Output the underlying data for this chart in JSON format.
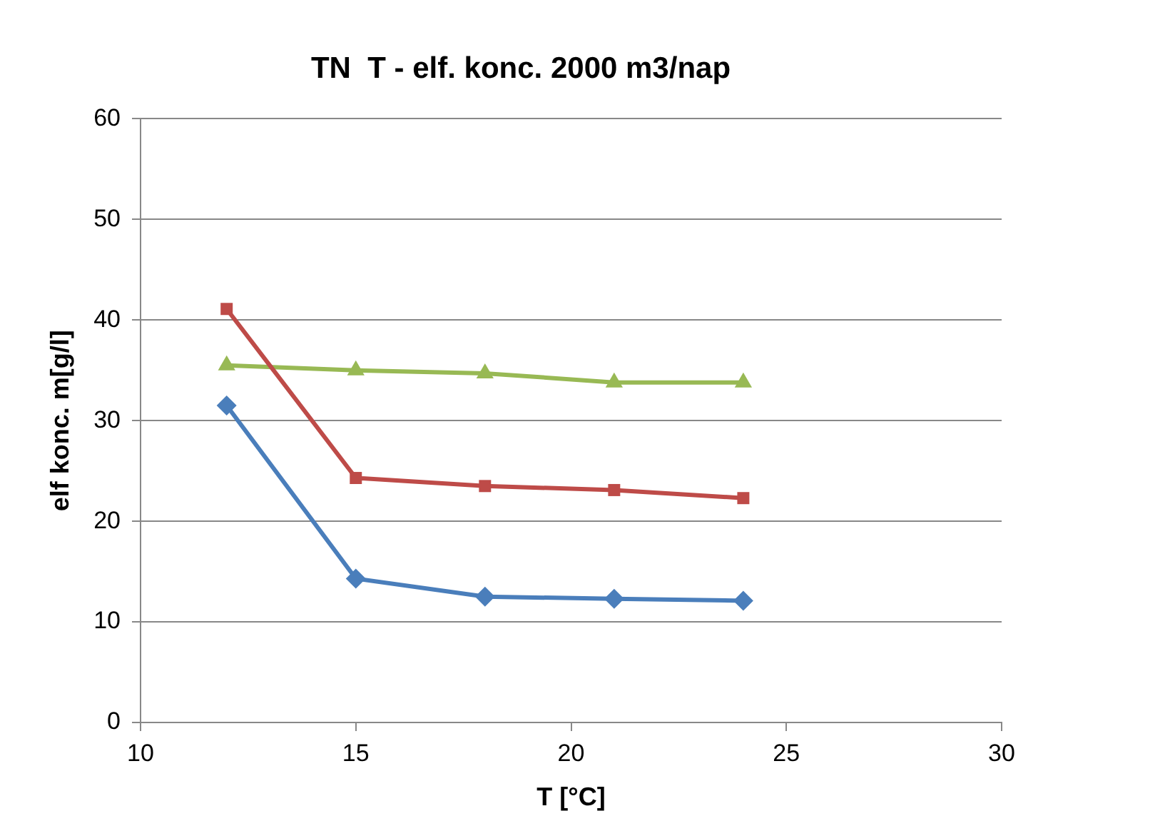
{
  "chart_data": {
    "type": "line",
    "title": "TN  T - elf. konc. 2000 m3/nap",
    "xlabel": "T [°C]",
    "ylabel": "elf konc. m[g/l]",
    "x": [
      12,
      15,
      18,
      21,
      24
    ],
    "series": [
      {
        "color": "#4a7ebb",
        "marker": "diamond",
        "values": [
          31.5,
          14.3,
          12.5,
          12.3,
          12.1
        ]
      },
      {
        "color": "#be4b48",
        "marker": "square",
        "values": [
          41.1,
          24.3,
          23.5,
          23.1,
          22.3
        ]
      },
      {
        "color": "#98b954",
        "marker": "triangle",
        "values": [
          35.5,
          35.0,
          34.7,
          33.8,
          33.8
        ]
      }
    ],
    "xlim": [
      10,
      30
    ],
    "xticks": [
      10,
      15,
      20,
      25,
      30
    ],
    "ylim": [
      0,
      60
    ],
    "yticks": [
      0,
      10,
      20,
      30,
      40,
      50,
      60
    ],
    "grid": "y",
    "legend": false,
    "line_style": "solid"
  }
}
